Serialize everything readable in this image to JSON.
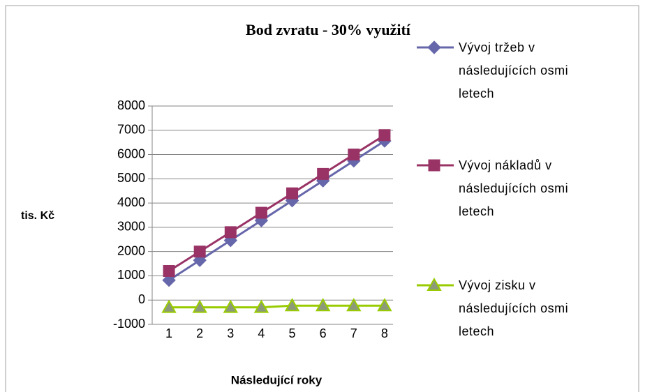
{
  "chart_data": {
    "type": "line",
    "title": "Bod zvratu - 30% využití",
    "y_label": "tis. Kč",
    "x_label": "Následující roky",
    "categories": [
      "1",
      "2",
      "3",
      "4",
      "5",
      "6",
      "7",
      "8"
    ],
    "series": [
      {
        "name": "Vývoj tržeb v následujících osmi letech",
        "color": "#6666aa",
        "marker": "diamond",
        "values": [
          820,
          1640,
          2460,
          3280,
          4100,
          4920,
          5740,
          6560
        ]
      },
      {
        "name": "Vývoj nákladů v následujících osmi letech",
        "color": "#993366",
        "marker": "square",
        "values": [
          1200,
          2000,
          2800,
          3600,
          4400,
          5200,
          6000,
          6800
        ]
      },
      {
        "name": "Vývoj zisku v následujících osmi letech",
        "color": "#99cc00",
        "marker": "triangle",
        "values": [
          -300,
          -300,
          -300,
          -300,
          -230,
          -230,
          -230,
          -230
        ]
      }
    ],
    "ylim": [
      -1000,
      8000
    ],
    "yticks": [
      -1000,
      0,
      1000,
      2000,
      3000,
      4000,
      5000,
      6000,
      7000,
      8000
    ],
    "grid": true,
    "legend": "right"
  }
}
